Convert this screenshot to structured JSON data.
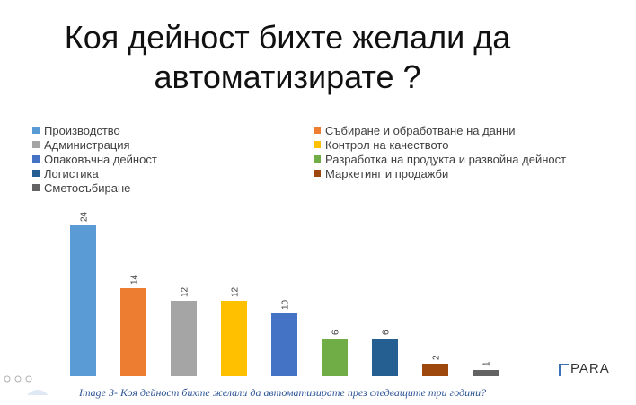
{
  "title_line1": "Коя дейност бихте желали да",
  "title_line2": "автоматизирате ?",
  "caption": "Image 3- Коя дейност бихте желали да автоматизирате през следващите три години?",
  "logo_text": "PARA",
  "chart_data": {
    "type": "bar",
    "categories": [
      "Производство",
      "Събиране и обработване на данни",
      "Администрация",
      "Контрол на качеството",
      "Опаковъчна дейност",
      "Разработка на продукта и развойна дейност",
      "Логистика",
      "Маркетинг и продажби",
      "Сметосъбиране"
    ],
    "values": [
      24,
      14,
      12,
      12,
      10,
      6,
      6,
      2,
      1
    ],
    "colors": [
      "#5b9bd5",
      "#ed7d31",
      "#a5a5a5",
      "#ffc000",
      "#4472c4",
      "#70ad47",
      "#255e91",
      "#9e480e",
      "#636363"
    ],
    "ylim": [
      0,
      24
    ],
    "legend_position": "top",
    "grid": false,
    "data_labels": true
  }
}
